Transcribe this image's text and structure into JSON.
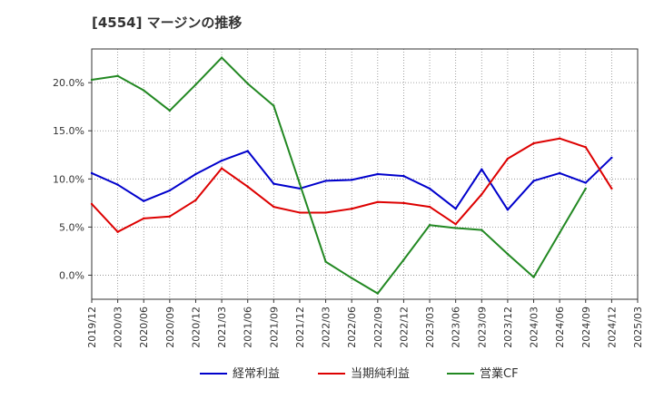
{
  "title": "[4554]  マージンの推移",
  "chart_data": {
    "type": "line",
    "title": "[4554]  マージンの推移",
    "xlabel": "",
    "ylabel": "",
    "x": [
      "2019/12",
      "2020/03",
      "2020/06",
      "2020/09",
      "2020/12",
      "2021/03",
      "2021/06",
      "2021/09",
      "2021/12",
      "2022/03",
      "2022/06",
      "2022/09",
      "2022/12",
      "2023/03",
      "2023/06",
      "2023/09",
      "2023/12",
      "2024/03",
      "2024/06",
      "2024/09",
      "2024/12",
      "2025/03"
    ],
    "y_ticks": [
      "20.0%",
      "15.0%",
      "10.0%",
      "5.0%",
      "0.0%"
    ],
    "y_tick_values": [
      20,
      15,
      10,
      5,
      0
    ],
    "ylim": [
      -2.5,
      23.5
    ],
    "grid": true,
    "legend_position": "bottom",
    "series": [
      {
        "name": "経常利益",
        "color": "#0000cc",
        "values": [
          10.6,
          9.4,
          7.7,
          8.8,
          10.5,
          11.9,
          12.9,
          9.5,
          9.0,
          9.8,
          9.9,
          10.5,
          10.3,
          9.0,
          6.9,
          11.0,
          6.8,
          9.8,
          10.6,
          9.6,
          12.2,
          null
        ]
      },
      {
        "name": "当期純利益",
        "color": "#dd0000",
        "values": [
          7.4,
          4.5,
          5.9,
          6.1,
          7.8,
          11.1,
          9.2,
          7.1,
          6.5,
          6.5,
          6.9,
          7.6,
          7.5,
          7.1,
          5.3,
          8.4,
          12.1,
          13.7,
          14.2,
          13.3,
          9.0,
          null
        ]
      },
      {
        "name": "営業CF",
        "color": "#228822",
        "values": [
          20.3,
          20.7,
          19.2,
          17.1,
          19.8,
          22.6,
          19.9,
          17.6,
          9.5,
          1.4,
          -0.3,
          -1.9,
          1.6,
          5.2,
          4.9,
          4.7,
          2.2,
          -0.2,
          4.4,
          9.0,
          null,
          null
        ]
      }
    ]
  }
}
